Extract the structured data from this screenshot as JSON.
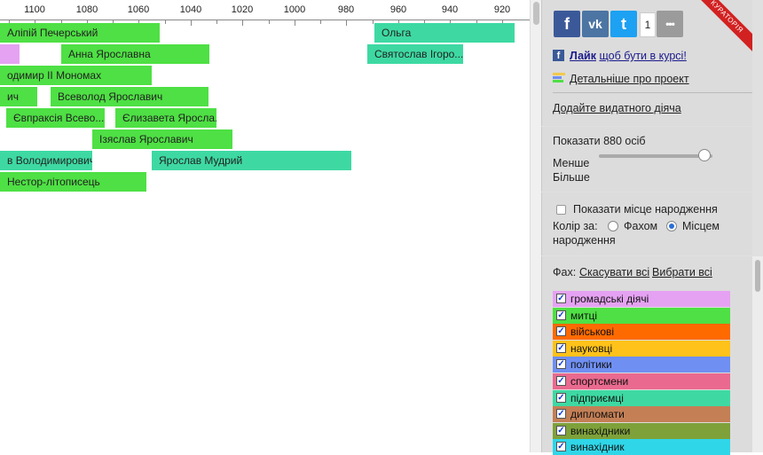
{
  "axis": {
    "ticks": [
      1110,
      1100,
      1090,
      1080,
      1070,
      1060,
      1050,
      1040,
      1030,
      1020,
      1010,
      1000,
      990,
      980,
      970,
      960,
      950,
      940,
      930,
      920
    ],
    "labels": [
      "1100",
      "1080",
      "1060",
      "1040",
      "1020",
      "1000",
      "980",
      "960",
      "940",
      "920"
    ]
  },
  "bars": [
    {
      "label": "Алiпiй Печерський",
      "start": 1115,
      "end": 1052,
      "row": 0,
      "color": "#4ee044"
    },
    {
      "label": "Ольга",
      "start": 969,
      "end": 915,
      "row": 0,
      "color": "#3ed9a3"
    },
    {
      "label": "",
      "start": 1115,
      "end": 1106,
      "row": 1,
      "color": "#e5a2f2"
    },
    {
      "label": "Анна Ярославна",
      "start": 1090,
      "end": 1033,
      "row": 1,
      "color": "#4ee044"
    },
    {
      "label": "Святослав Iгоро...",
      "start": 972,
      "end": 935,
      "row": 1,
      "color": "#3ed9a3"
    },
    {
      "label": "одимир II Мономах",
      "start": 1115,
      "end": 1055,
      "row": 2,
      "color": "#4ee044"
    },
    {
      "label": "ич",
      "start": 1115,
      "end": 1099,
      "row": 3,
      "color": "#4ee044"
    },
    {
      "label": "Всеволод Ярославич",
      "start": 1094,
      "end": 1033,
      "row": 3,
      "color": "#4ee044"
    },
    {
      "label": "Євпраксiя Всево...",
      "start": 1111,
      "end": 1073,
      "row": 4,
      "color": "#4ee044"
    },
    {
      "label": "Єлизавета Яросла...",
      "start": 1069,
      "end": 1030,
      "row": 4,
      "color": "#4ee044"
    },
    {
      "label": "Iзяслав Ярославич",
      "start": 1078,
      "end": 1024,
      "row": 5,
      "color": "#4ee044"
    },
    {
      "label": "в Володимирович",
      "start": 1115,
      "end": 1078,
      "row": 6,
      "color": "#3ed9a3"
    },
    {
      "label": "Ярослав Мудрий",
      "start": 1055,
      "end": 978,
      "row": 6,
      "color": "#3ed9a3"
    },
    {
      "label": "Нестор-лiтописець",
      "start": 1115,
      "end": 1057,
      "row": 7,
      "color": "#4ee044"
    }
  ],
  "social": {
    "facebook_glyph": "f",
    "vk_glyph": "vk",
    "twitter_glyph": "t",
    "share_count": "1",
    "more_glyph": "•••",
    "ribbon": "КУРАТОРIЯ"
  },
  "links": {
    "like_bold": "Лайк",
    "like_rest": "щоб бути в курсi!",
    "about": "Детальнiше про проект",
    "add": "Додайте видатного дiяча"
  },
  "slider": {
    "show_label": "Показати 880 осiб",
    "less": "Менше",
    "more": "Бiльше",
    "value_fraction": 0.93
  },
  "options": {
    "birthplace_checkbox": "Показати мiсце народження",
    "color_by": "Колiр за:",
    "by_profession": "Фахом",
    "by_birthplace_1": "Мiсцем",
    "by_birthplace_2": "народження"
  },
  "filter": {
    "label": "Фах:",
    "cancel_all": "Скасувати всi",
    "select_all": "Вибрати всi",
    "categories": [
      {
        "label": "громадськi дiячi",
        "color": "#e5a2f2"
      },
      {
        "label": "митцi",
        "color": "#4ee044"
      },
      {
        "label": "вiйськовi",
        "color": "#ff6a00"
      },
      {
        "label": "науковцi",
        "color": "#ffc21a"
      },
      {
        "label": "полiтики",
        "color": "#6f8ff2"
      },
      {
        "label": "спортсмени",
        "color": "#ea6a8f"
      },
      {
        "label": "пiдприємцi",
        "color": "#3ed9a3"
      },
      {
        "label": "дипломати",
        "color": "#c47f55"
      },
      {
        "label": "винахiдники",
        "color": "#7ea13a"
      },
      {
        "label": "винахiдник",
        "color": "#2fd6e8"
      }
    ]
  }
}
